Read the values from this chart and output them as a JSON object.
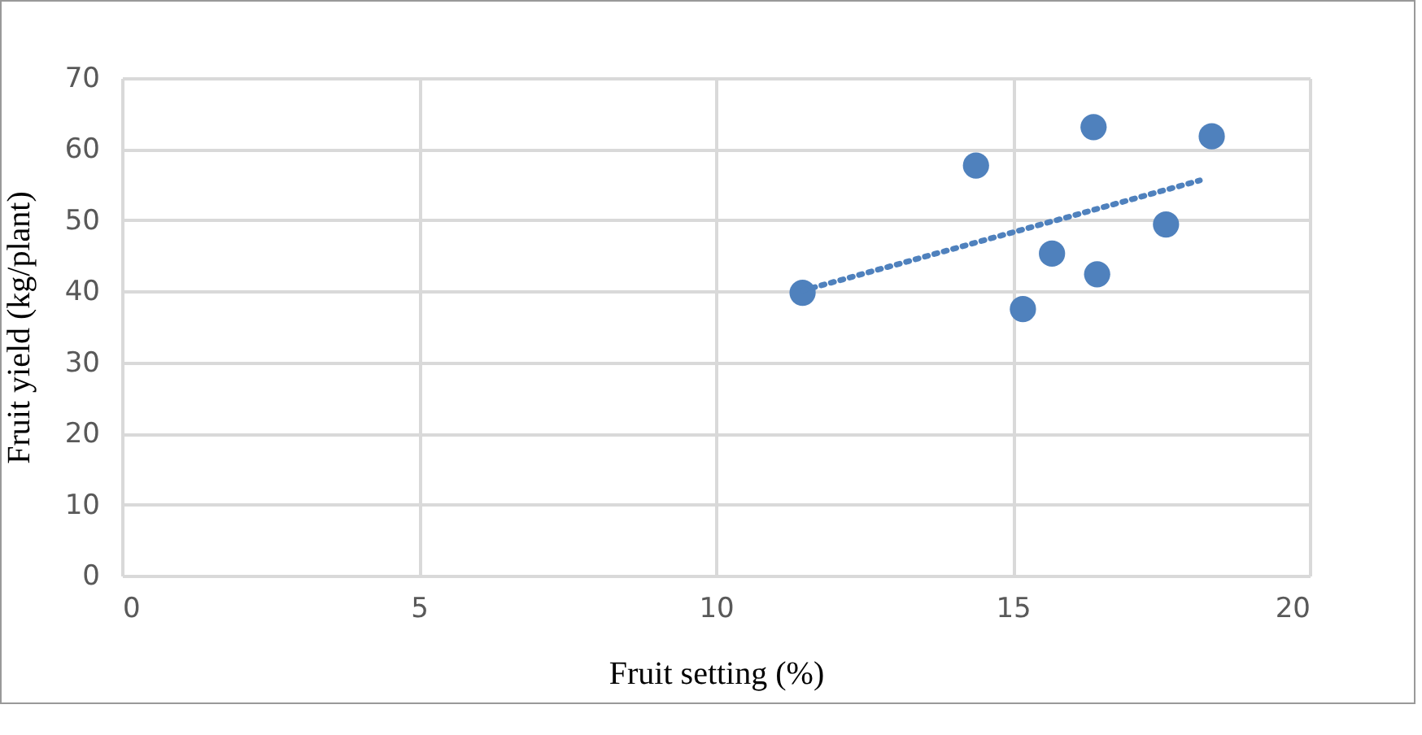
{
  "chart_data": {
    "type": "scatter",
    "xlabel": "Fruit setting (%)",
    "ylabel": "Fruit yield (kg/plant)",
    "xlim": [
      0,
      20
    ],
    "xticks": [
      0,
      5,
      10,
      15,
      20
    ],
    "ylim": [
      0,
      70
    ],
    "yticks": [
      0,
      10,
      20,
      30,
      40,
      50,
      60,
      70
    ],
    "grid": true,
    "series": [
      {
        "marker": "circle",
        "color": "#4f81bd",
        "x": [
          11.46,
          14.38,
          15.17,
          15.66,
          16.36,
          16.42,
          17.58,
          18.35
        ],
        "values": [
          39.8,
          57.7,
          37.5,
          45.3,
          63.1,
          42.4,
          49.4,
          61.8
        ]
      },
      {
        "type": "line",
        "color": "#4f81bd",
        "line_style": "dotted",
        "x": [
          11.46,
          18.15
        ],
        "values": [
          40.1,
          55.6
        ]
      }
    ]
  }
}
